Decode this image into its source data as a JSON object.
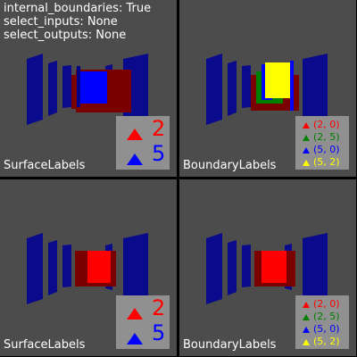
{
  "params": {
    "line1": "internal_boundaries: True",
    "line2": "select_inputs: None",
    "line3": "select_outputs: None"
  },
  "viewports": [
    {
      "caption": "SurfaceLabels",
      "legend": [
        {
          "label": "2",
          "color": "#ff0000"
        },
        {
          "label": "5",
          "color": "#0000ff"
        }
      ]
    },
    {
      "caption": "BoundaryLabels",
      "legend": [
        {
          "label": "(2, 0)",
          "color": "#ff0000"
        },
        {
          "label": "(2, 5)",
          "color": "#008000"
        },
        {
          "label": "(5, 0)",
          "color": "#0000ff"
        },
        {
          "label": "(5, 2)",
          "color": "#ffff00"
        }
      ]
    },
    {
      "caption": "SurfaceLabels",
      "legend": [
        {
          "label": "2",
          "color": "#ff0000"
        },
        {
          "label": "5",
          "color": "#0000ff"
        }
      ]
    },
    {
      "caption": "BoundaryLabels",
      "legend": [
        {
          "label": "(2, 0)",
          "color": "#ff0000"
        },
        {
          "label": "(2, 5)",
          "color": "#008000"
        },
        {
          "label": "(5, 0)",
          "color": "#0000ff"
        },
        {
          "label": "(5, 2)",
          "color": "#ffff00"
        }
      ]
    }
  ],
  "colors": {
    "background": "#4c4c4c",
    "divider": "#000000",
    "legend_bg": "#909090",
    "wall_blue": "#0a0a8c",
    "dark_red": "#7a0000",
    "red": "#ff0000",
    "blue": "#0000ff",
    "green": "#008000",
    "yellow": "#ffff00"
  }
}
